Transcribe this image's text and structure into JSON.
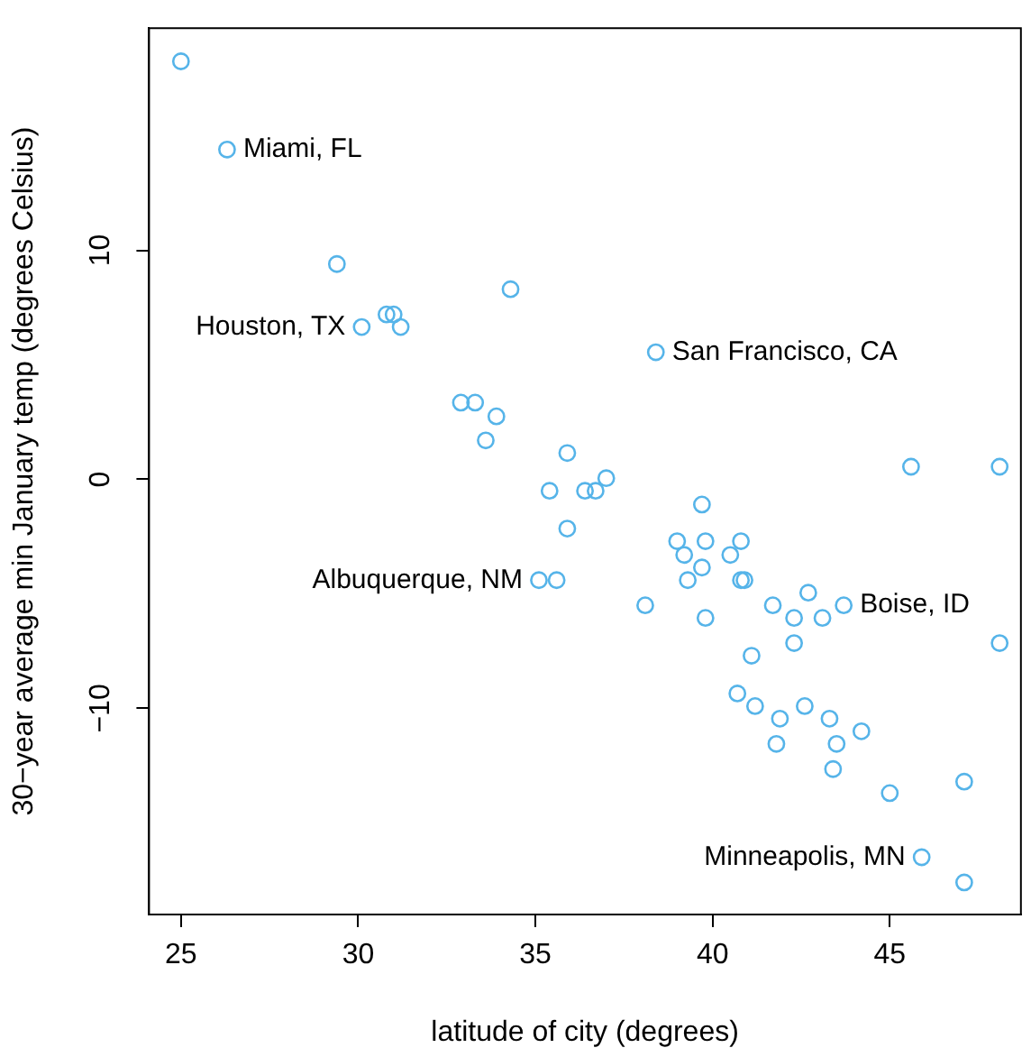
{
  "chart_data": {
    "type": "scatter",
    "xlabel": "latitude of city (degrees)",
    "ylabel": "30−year average min January temp (degrees Celsius)",
    "xlim": [
      24.1,
      48.7
    ],
    "ylim": [
      -19.0,
      19.7
    ],
    "xticks": [
      25,
      30,
      35,
      40,
      45
    ],
    "yticks": [
      -10,
      0,
      10
    ],
    "grid": false,
    "legend": false,
    "marker": "circle",
    "series": [
      {
        "color": "#56b4e9",
        "x": [
          25.0,
          26.3,
          29.4,
          34.3,
          30.1,
          30.8,
          31.0,
          31.2,
          32.9,
          33.3,
          33.9,
          33.6,
          35.9,
          35.4,
          36.4,
          36.7,
          37.0,
          38.4,
          35.9,
          35.1,
          35.6,
          38.1,
          39.7,
          39.0,
          39.8,
          40.8,
          39.2,
          40.5,
          39.7,
          39.3,
          40.8,
          40.9,
          39.8,
          41.7,
          42.3,
          42.7,
          43.1,
          43.7,
          42.3,
          48.1,
          45.6,
          48.1,
          41.1,
          40.7,
          41.2,
          41.9,
          42.6,
          43.3,
          44.2,
          41.8,
          43.5,
          43.4,
          45.0,
          47.1,
          45.9,
          47.1
        ],
        "values": [
          18.25,
          14.4,
          9.4,
          8.3,
          6.65,
          7.2,
          7.2,
          6.65,
          3.35,
          3.35,
          2.75,
          1.7,
          1.15,
          -0.5,
          -0.5,
          -0.5,
          0.05,
          5.55,
          -2.15,
          -4.4,
          -4.4,
          -5.5,
          -1.1,
          -2.7,
          -2.7,
          -2.7,
          -3.3,
          -3.3,
          -3.85,
          -4.4,
          -4.4,
          -4.4,
          -6.05,
          -5.5,
          -6.05,
          -4.95,
          -6.05,
          -5.5,
          -7.15,
          -7.15,
          0.55,
          0.55,
          -7.7,
          -9.35,
          -9.9,
          -10.45,
          -9.9,
          -10.45,
          -11.0,
          -11.55,
          -11.55,
          -12.65,
          -13.7,
          -13.2,
          -16.5,
          -17.6
        ]
      }
    ],
    "annotations": [
      {
        "text": "Miami, FL",
        "x": 26.3,
        "y": 14.4
      },
      {
        "text": "Houston, TX",
        "x": 30.1,
        "y": 6.65
      },
      {
        "text": "San Francisco, CA",
        "x": 38.4,
        "y": 5.55
      },
      {
        "text": "Albuquerque, NM",
        "x": 35.1,
        "y": -4.4
      },
      {
        "text": "Boise, ID",
        "x": 43.7,
        "y": -5.5
      },
      {
        "text": "Minneapolis, MN",
        "x": 45.9,
        "y": -16.5
      }
    ]
  }
}
